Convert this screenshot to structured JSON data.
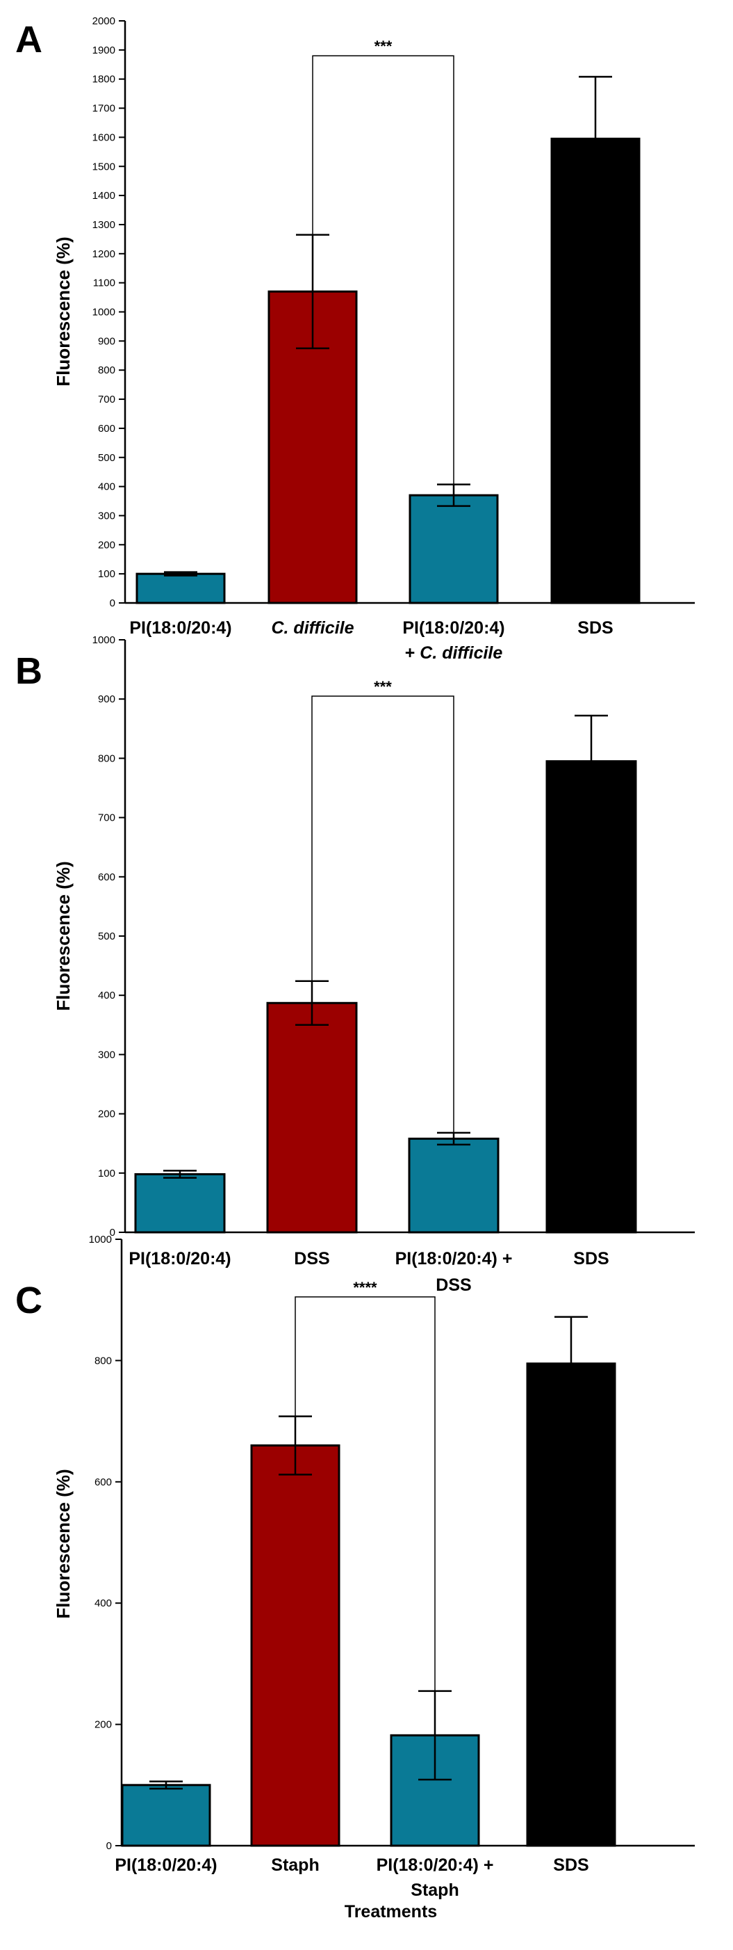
{
  "colors": {
    "teal": "#0a7a96",
    "red": "#9b0000",
    "black": "#000000"
  },
  "chart_data": [
    {
      "type": "bar",
      "panel": "A",
      "ylabel": "Fluorescence (%)",
      "xlabel": "",
      "ylim": [
        0,
        2000
      ],
      "yticks": [
        0,
        100,
        200,
        300,
        400,
        500,
        600,
        700,
        800,
        900,
        1000,
        1100,
        1200,
        1300,
        1400,
        1500,
        1600,
        1700,
        1800,
        1900,
        2000
      ],
      "categories": [
        {
          "lines": [
            "PI(18:0/20:4)"
          ],
          "italic": false
        },
        {
          "lines": [
            "C. difficile"
          ],
          "italic": true
        },
        {
          "lines": [
            "PI(18:0/20:4)",
            "+ C. difficile"
          ],
          "italic": false
        },
        {
          "lines": [
            "SDS"
          ],
          "italic": false
        }
      ],
      "values": [
        100,
        1070,
        370,
        1595
      ],
      "errors": [
        6,
        195,
        37,
        213
      ],
      "bar_colors": [
        "teal",
        "red",
        "teal",
        "black"
      ],
      "significance": {
        "from": 1,
        "to": 2,
        "label": "***",
        "y": 1880
      }
    },
    {
      "type": "bar",
      "panel": "B",
      "ylabel": "Fluorescence (%)",
      "xlabel": "",
      "ylim": [
        0,
        1000
      ],
      "yticks": [
        0,
        100,
        200,
        300,
        400,
        500,
        600,
        700,
        800,
        900,
        1000
      ],
      "categories": [
        {
          "lines": [
            "PI(18:0/20:4)"
          ],
          "italic": false
        },
        {
          "lines": [
            "DSS"
          ],
          "italic": false
        },
        {
          "lines": [
            "PI(18:0/20:4) +",
            "DSS"
          ],
          "italic": false
        },
        {
          "lines": [
            "SDS"
          ],
          "italic": false
        }
      ],
      "values": [
        98,
        387,
        158,
        795
      ],
      "errors": [
        6,
        37,
        10,
        77
      ],
      "bar_colors": [
        "teal",
        "red",
        "teal",
        "black"
      ],
      "significance": {
        "from": 1,
        "to": 2,
        "label": "***",
        "y": 905
      }
    },
    {
      "type": "bar",
      "panel": "C",
      "ylabel": "Fluorescence (%)",
      "xlabel": "Treatments",
      "ylim": [
        0,
        1000
      ],
      "yticks": [
        0,
        200,
        400,
        600,
        800,
        1000
      ],
      "categories": [
        {
          "lines": [
            "PI(18:0/20:4)"
          ],
          "italic": false
        },
        {
          "lines": [
            "Staph"
          ],
          "italic": false
        },
        {
          "lines": [
            "PI(18:0/20:4) +",
            "Staph"
          ],
          "italic": false
        },
        {
          "lines": [
            "SDS"
          ],
          "italic": false
        }
      ],
      "values": [
        100,
        660,
        182,
        795
      ],
      "errors": [
        6,
        48,
        73,
        77
      ],
      "bar_colors": [
        "teal",
        "red",
        "teal",
        "black"
      ],
      "significance": {
        "from": 1,
        "to": 2,
        "label": "****",
        "y": 905
      }
    }
  ]
}
